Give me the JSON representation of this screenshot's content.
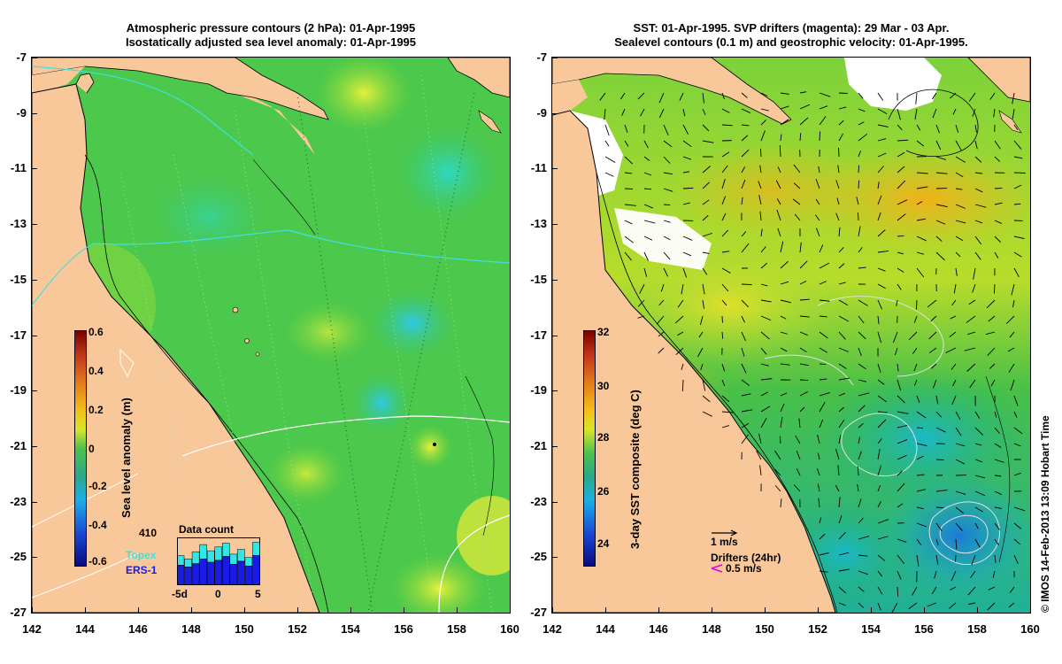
{
  "left_panel": {
    "title_line1": "Atmospheric pressure contours (2 hPa): 01-Apr-1995",
    "title_line2": "Isostatically adjusted sea level anomaly: 01-Apr-1995",
    "colorbar_label": "Sea level anomaly (m)",
    "colorbar_ticks": [
      "0.6",
      "0.4",
      "0.2",
      "0",
      "-0.2",
      "-0.4",
      "-0.6"
    ],
    "legend_count": "410",
    "legend_topex": "Topex",
    "legend_ers": "ERS-1",
    "inset_title": "Data count",
    "inset_xticks": [
      "-5d",
      "0",
      "5"
    ],
    "inset_bars": [
      {
        "total": 0.62,
        "ers": 0.42
      },
      {
        "total": 0.55,
        "ers": 0.38
      },
      {
        "total": 0.7,
        "ers": 0.45
      },
      {
        "total": 0.85,
        "ers": 0.55
      },
      {
        "total": 0.72,
        "ers": 0.48
      },
      {
        "total": 0.8,
        "ers": 0.52
      },
      {
        "total": 0.88,
        "ers": 0.6
      },
      {
        "total": 0.65,
        "ers": 0.44
      },
      {
        "total": 0.75,
        "ers": 0.5
      },
      {
        "total": 0.58,
        "ers": 0.4
      },
      {
        "total": 0.9,
        "ers": 0.62
      }
    ],
    "colors": {
      "topex": "#33e5e5",
      "ers": "#1a1ae6"
    }
  },
  "right_panel": {
    "title_line1": "SST: 01-Apr-1995. SVP drifters (magenta): 29 Mar - 03 Apr.",
    "title_line2": "Sealevel contours (0.1 m) and geostrophic velocity: 01-Apr-1995.",
    "colorbar_label": "3-day SST composite (deg C)",
    "colorbar_ticks": [
      "32",
      "30",
      "28",
      "26",
      "24"
    ],
    "scale_arrow_label": "1 m/s",
    "drifters_label": "Drifters (24hr)",
    "drifter_arrow_label": "0.5 m/s"
  },
  "axes": {
    "y_ticks": [
      "-7",
      "-9",
      "-11",
      "-13",
      "-15",
      "-17",
      "-19",
      "-21",
      "-23",
      "-25",
      "-27"
    ],
    "x_ticks": [
      "142",
      "144",
      "146",
      "148",
      "150",
      "152",
      "154",
      "156",
      "158",
      "160"
    ],
    "lon_range": [
      142,
      160
    ],
    "lat_range": [
      -27,
      -7
    ]
  },
  "credit": "© IMOS 14-Feb-2013 13:09 Hobart Time",
  "colors": {
    "land": "#f9c89a",
    "ocean_green": "#3fc43f",
    "coast": "#000000"
  }
}
